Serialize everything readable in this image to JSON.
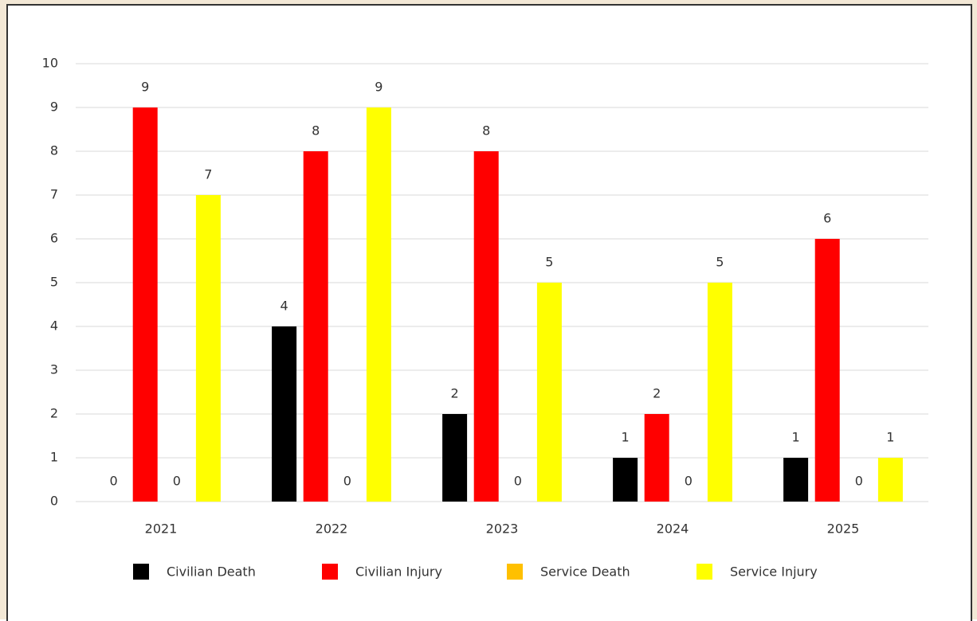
{
  "chart_data": {
    "type": "bar",
    "categories": [
      "2021",
      "2022",
      "2023",
      "2024",
      "2025"
    ],
    "series": [
      {
        "name": "Civilian Death",
        "color": "#000000",
        "values": [
          0,
          4,
          2,
          1,
          1
        ]
      },
      {
        "name": "Civilian Injury",
        "color": "#ff0000",
        "values": [
          9,
          8,
          8,
          2,
          6
        ]
      },
      {
        "name": "Service Death",
        "color": "#ffc000",
        "values": [
          0,
          0,
          0,
          0,
          0
        ]
      },
      {
        "name": "Service Injury",
        "color": "#ffff00",
        "values": [
          7,
          9,
          5,
          5,
          1
        ]
      }
    ],
    "ylim": [
      0,
      10
    ],
    "yticks": [
      0,
      1,
      2,
      3,
      4,
      5,
      6,
      7,
      8,
      9,
      10
    ],
    "grid": true,
    "legend": "bottom"
  }
}
